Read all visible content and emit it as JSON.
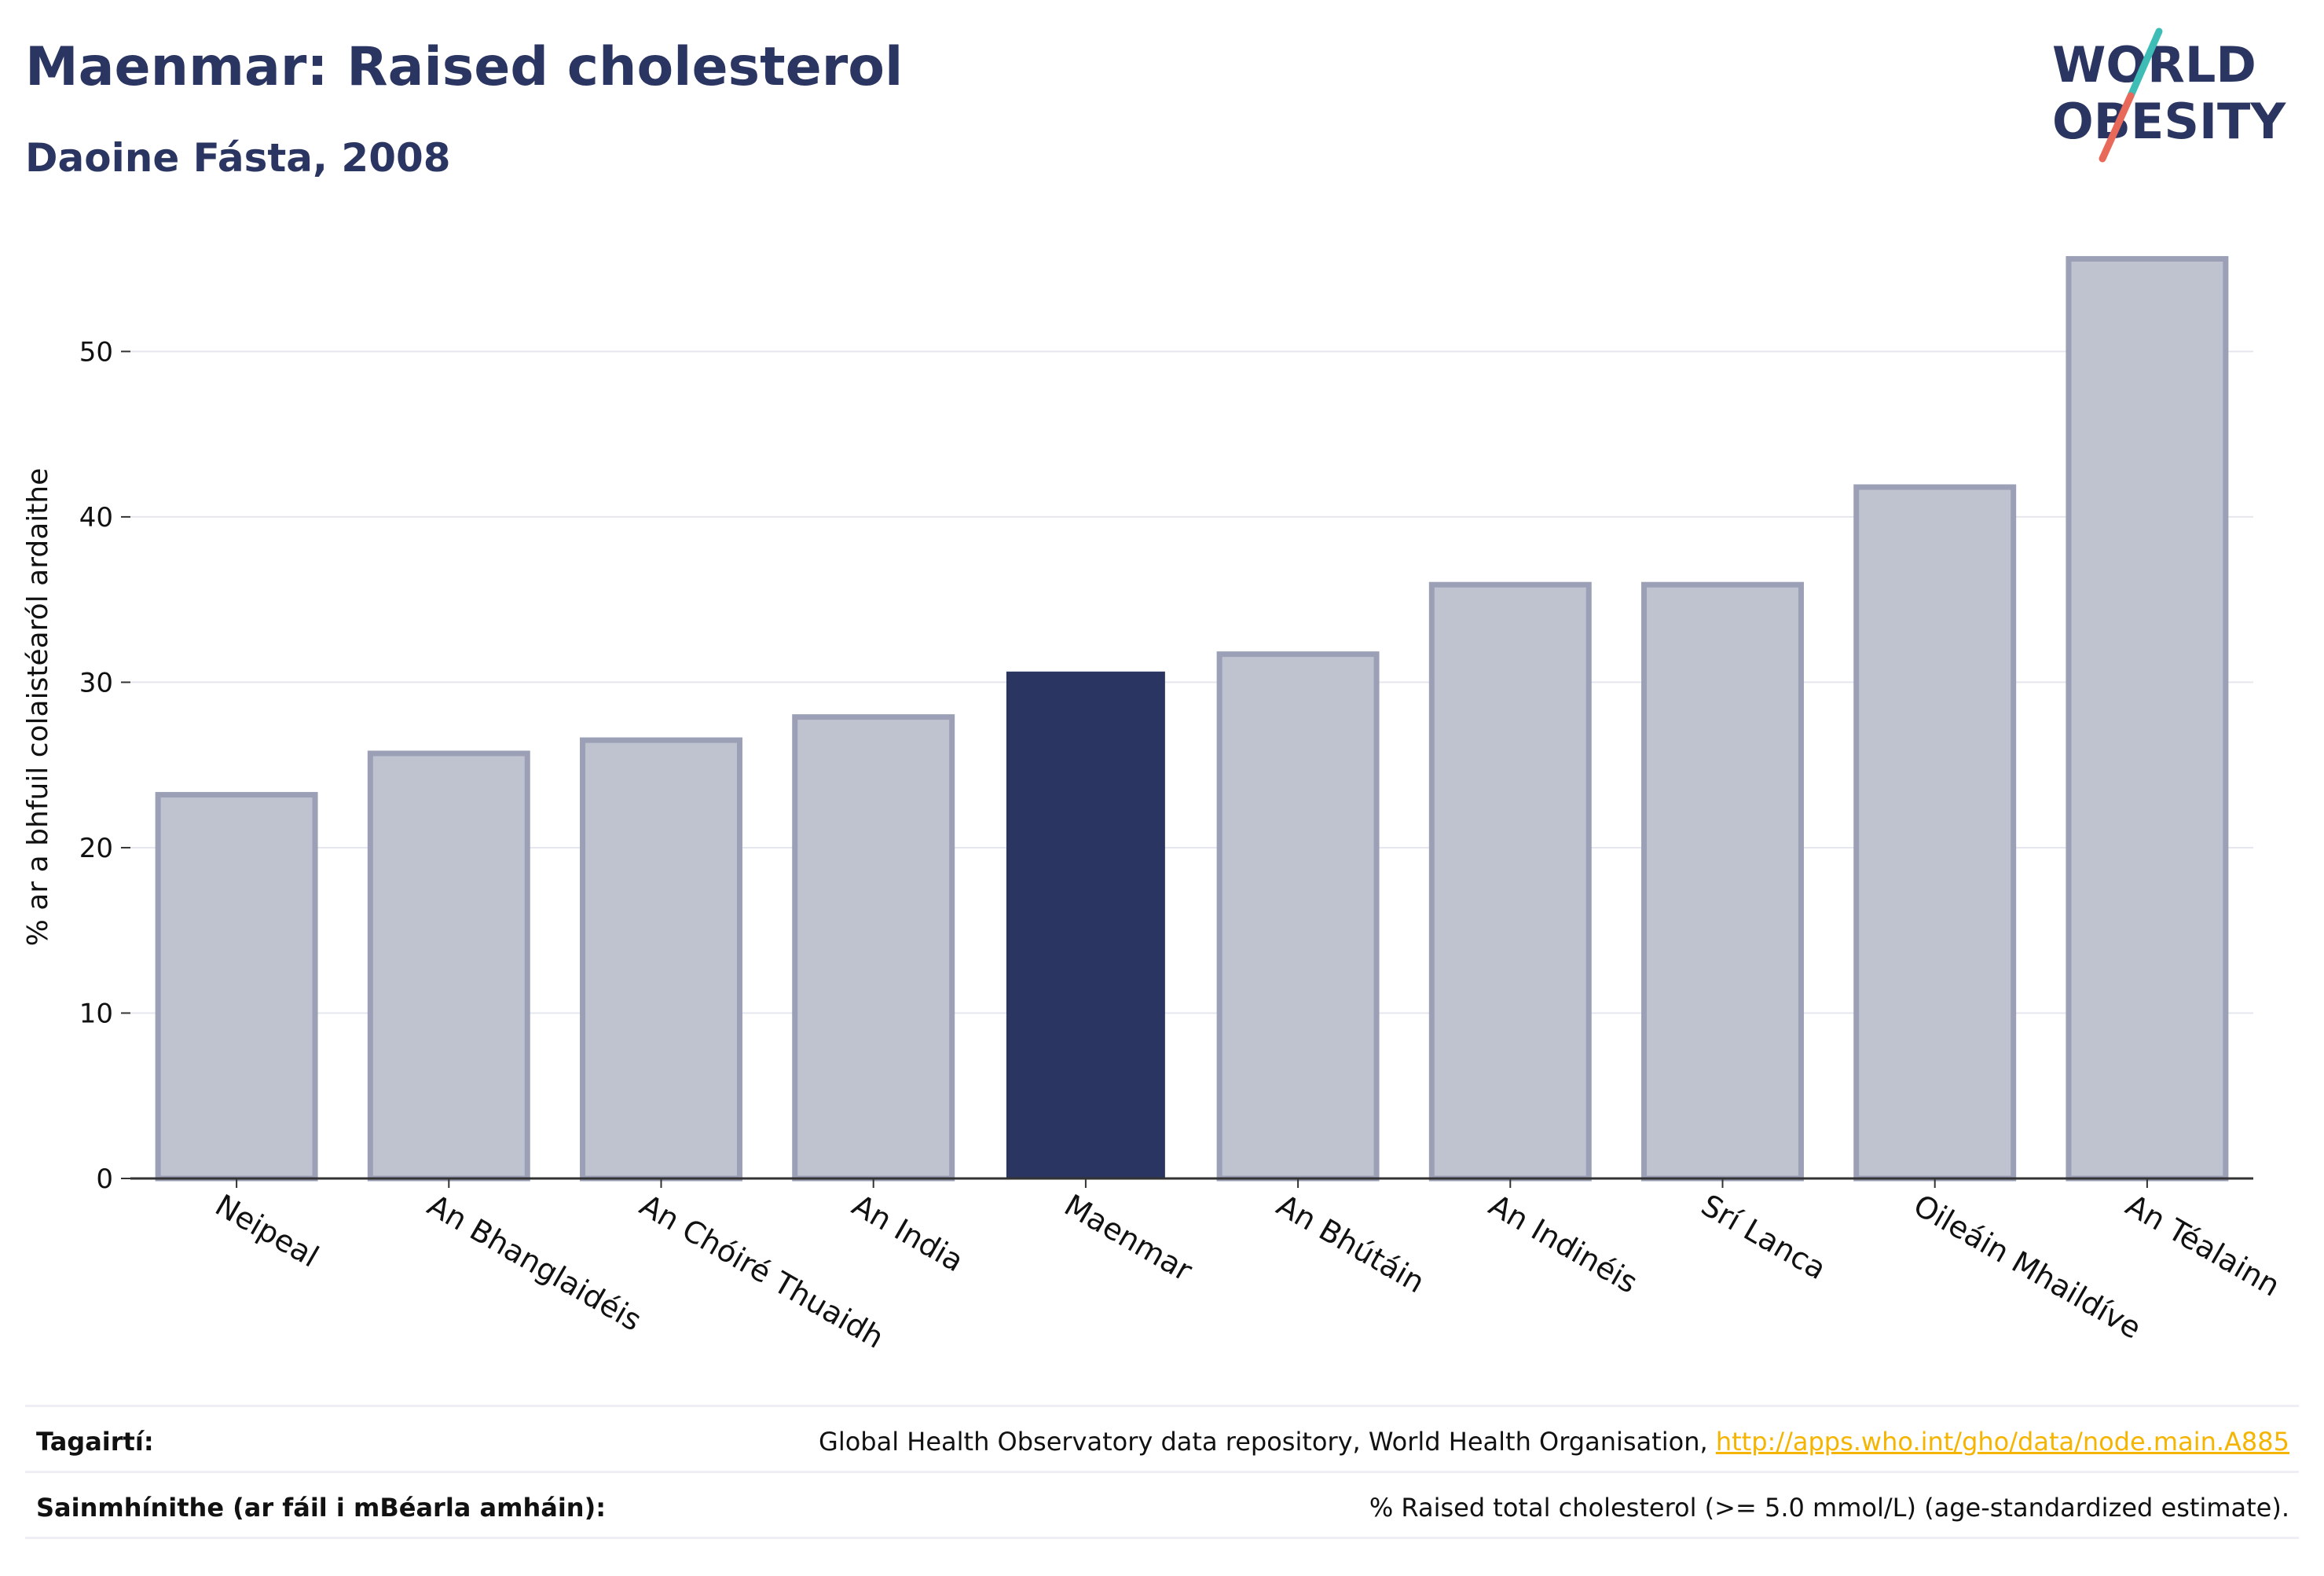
{
  "header": {
    "title": "Maenmar: Raised cholesterol",
    "subtitle": "Daoine Fásta, 2008"
  },
  "logo": {
    "line1": "WORLD",
    "line2": "OBESITY",
    "colors": {
      "text": "#2b3561",
      "slash_top": "#3dbdb5",
      "slash_bottom": "#e8685a"
    }
  },
  "chart_data": {
    "type": "bar",
    "ylabel": "% ar a bhfuil colaistéaról ardaithe",
    "ylim": [
      0,
      57
    ],
    "yticks": [
      0,
      10,
      20,
      30,
      40,
      50
    ],
    "grid": true,
    "categories": [
      "Neipeal",
      "An Bhanglaidéis",
      "An Chóiré Thuaidh",
      "An India",
      "Maenmar",
      "An Bhútáin",
      "An Indinéis",
      "Srí Lanca",
      "Oileáin Mhaildíve",
      "An Téalainn"
    ],
    "values": [
      23.2,
      25.7,
      26.5,
      27.9,
      30.6,
      31.7,
      35.9,
      35.9,
      41.8,
      55.6
    ],
    "highlight": "Maenmar",
    "colors": {
      "highlight": "#2b3561",
      "default_fill": "#bfc2cf",
      "default_stroke": "#9ba0b6",
      "grid": "#e6e7ee",
      "axis": "#333333"
    }
  },
  "footer": {
    "references_label": "Tagairtí:",
    "references_text": "Global Health Observatory data repository, World Health Organisation, ",
    "references_link": "http://apps.who.int/gho/data/node.main.A885",
    "definitions_label": "Sainmhínithe (ar fáil i mBéarla amháin):",
    "definitions_text": "% Raised total cholesterol (>= 5.0 mmol/L) (age-standardized estimate)."
  }
}
